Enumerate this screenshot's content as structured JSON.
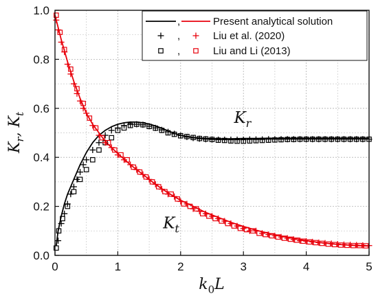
{
  "chart_data": {
    "type": "line",
    "xlabel": "k",
    "xlabel_sub": "0",
    "xlabel_tail": "L",
    "ylabel": "K",
    "ylabel_sub1": "r",
    "ylabel_sep": ", K",
    "ylabel_sub2": "t",
    "xlim": [
      0,
      5
    ],
    "ylim": [
      0,
      1.0
    ],
    "xticks": [
      0,
      1,
      2,
      3,
      4,
      5
    ],
    "yticks": [
      0.0,
      0.2,
      0.4,
      0.6,
      0.8,
      1.0
    ],
    "xtick_labels": [
      "0",
      "1",
      "2",
      "3",
      "4",
      "5"
    ],
    "ytick_labels": [
      "0.0",
      "0.2",
      "0.4",
      "0.6",
      "0.8",
      "1.0"
    ],
    "grid": true,
    "legend_position": "top-right",
    "legend": {
      "row1_sep": ",",
      "row1_label": "Present analytical solution",
      "row2_sep": ",",
      "row2_label": "Liu et al. (2020)",
      "row3_sep": ",",
      "row3_label": "Liu and Li (2013)"
    },
    "annotations": [
      {
        "main": "K",
        "sub": "r",
        "x": 2.85,
        "y": 0.54
      },
      {
        "main": "K",
        "sub": "t",
        "x": 1.72,
        "y": 0.11
      }
    ],
    "colors": {
      "Kr": "#000000",
      "Kt": "#e8000b"
    },
    "series": [
      {
        "key": "Kr_analytical",
        "style": "line",
        "color": "#000000",
        "x": [
          0.02,
          0.05,
          0.1,
          0.15,
          0.2,
          0.3,
          0.4,
          0.5,
          0.6,
          0.7,
          0.8,
          0.9,
          1.0,
          1.1,
          1.2,
          1.3,
          1.4,
          1.5,
          1.6,
          1.7,
          1.8,
          1.9,
          2.0,
          2.2,
          2.4,
          2.6,
          2.8,
          3.0,
          3.2,
          3.4,
          3.6,
          3.8,
          4.0,
          4.5,
          5.0
        ],
        "y": [
          0.04,
          0.1,
          0.16,
          0.21,
          0.25,
          0.31,
          0.37,
          0.42,
          0.46,
          0.49,
          0.51,
          0.525,
          0.535,
          0.541,
          0.544,
          0.544,
          0.541,
          0.536,
          0.528,
          0.519,
          0.508,
          0.498,
          0.49,
          0.481,
          0.477,
          0.476,
          0.476,
          0.477,
          0.477,
          0.478,
          0.478,
          0.478,
          0.478,
          0.478,
          0.478
        ]
      },
      {
        "key": "Kt_analytical",
        "style": "line",
        "color": "#e8000b",
        "x": [
          0.0,
          0.05,
          0.1,
          0.2,
          0.3,
          0.4,
          0.5,
          0.6,
          0.7,
          0.8,
          0.9,
          1.0,
          1.2,
          1.4,
          1.6,
          1.8,
          2.0,
          2.2,
          2.4,
          2.6,
          2.8,
          3.0,
          3.2,
          3.4,
          3.6,
          3.8,
          4.0,
          4.2,
          4.4,
          4.6,
          4.8,
          5.0
        ],
        "y": [
          0.98,
          0.93,
          0.88,
          0.79,
          0.71,
          0.64,
          0.58,
          0.535,
          0.5,
          0.465,
          0.44,
          0.415,
          0.37,
          0.33,
          0.29,
          0.255,
          0.225,
          0.2,
          0.175,
          0.155,
          0.135,
          0.118,
          0.103,
          0.09,
          0.079,
          0.069,
          0.06,
          0.053,
          0.047,
          0.043,
          0.04,
          0.038
        ]
      },
      {
        "key": "Kr_liu2020",
        "style": "plus",
        "color": "#000000",
        "x": [
          0.05,
          0.1,
          0.15,
          0.2,
          0.25,
          0.3,
          0.35,
          0.4,
          0.45,
          0.5,
          0.6,
          0.7,
          0.8,
          0.9,
          1.0,
          1.1,
          1.2,
          1.3,
          1.4,
          1.5,
          1.6,
          1.7,
          1.8,
          1.9,
          2.0,
          2.1,
          2.2,
          2.3,
          2.4,
          2.5,
          2.6,
          2.7,
          2.8,
          2.9,
          3.0,
          3.1,
          3.2,
          3.3,
          3.4,
          3.5,
          3.6,
          3.7,
          3.8,
          3.9,
          4.0,
          4.1,
          4.2,
          4.3,
          4.4,
          4.5,
          4.6,
          4.7,
          4.8,
          4.9,
          5.0
        ],
        "y": [
          0.06,
          0.13,
          0.17,
          0.21,
          0.25,
          0.28,
          0.31,
          0.34,
          0.37,
          0.39,
          0.43,
          0.46,
          0.49,
          0.51,
          0.52,
          0.53,
          0.534,
          0.535,
          0.533,
          0.527,
          0.52,
          0.512,
          0.504,
          0.496,
          0.489,
          0.483,
          0.479,
          0.476,
          0.474,
          0.473,
          0.472,
          0.472,
          0.472,
          0.472,
          0.472,
          0.473,
          0.473,
          0.473,
          0.474,
          0.474,
          0.474,
          0.474,
          0.474,
          0.474,
          0.474,
          0.474,
          0.474,
          0.474,
          0.474,
          0.474,
          0.474,
          0.474,
          0.474,
          0.474,
          0.474
        ]
      },
      {
        "key": "Kr_liuli2013",
        "style": "square",
        "color": "#000000",
        "x": [
          0.02,
          0.06,
          0.12,
          0.2,
          0.3,
          0.4,
          0.5,
          0.6,
          0.7,
          0.8,
          0.9,
          1.0,
          1.1,
          1.2,
          1.3,
          1.4,
          1.5,
          1.6,
          1.7,
          1.8,
          1.9,
          2.0,
          2.1,
          2.2,
          2.3,
          2.4,
          2.5,
          2.6,
          2.7,
          2.8,
          2.9,
          3.0,
          3.1,
          3.2,
          3.3,
          3.4,
          3.5,
          3.6,
          3.7,
          3.8,
          3.9,
          4.0,
          4.1,
          4.2,
          4.3,
          4.4,
          4.5,
          4.6,
          4.7,
          4.8,
          4.9,
          5.0
        ],
        "y": [
          0.03,
          0.1,
          0.15,
          0.2,
          0.26,
          0.31,
          0.35,
          0.39,
          0.43,
          0.46,
          0.48,
          0.51,
          0.52,
          0.53,
          0.535,
          0.533,
          0.526,
          0.519,
          0.51,
          0.5,
          0.494,
          0.488,
          0.485,
          0.481,
          0.477,
          0.475,
          0.473,
          0.47,
          0.469,
          0.467,
          0.466,
          0.466,
          0.467,
          0.468,
          0.469,
          0.47,
          0.471,
          0.472,
          0.473,
          0.473,
          0.474,
          0.474,
          0.474,
          0.474,
          0.474,
          0.474,
          0.474,
          0.474,
          0.474,
          0.474,
          0.474,
          0.474
        ]
      },
      {
        "key": "Kt_liu2020",
        "style": "plus",
        "color": "#e8000b",
        "x": [
          0.02,
          0.05,
          0.1,
          0.15,
          0.2,
          0.25,
          0.3,
          0.35,
          0.4,
          0.45,
          0.5,
          0.6,
          0.7,
          0.8,
          0.9,
          1.0,
          1.1,
          1.2,
          1.3,
          1.4,
          1.5,
          1.6,
          1.7,
          1.8,
          1.9,
          2.0,
          2.1,
          2.2,
          2.3,
          2.4,
          2.5,
          2.6,
          2.7,
          2.8,
          2.9,
          3.0,
          3.1,
          3.2,
          3.3,
          3.4,
          3.5,
          3.6,
          3.7,
          3.8,
          3.9,
          4.0,
          4.1,
          4.2,
          4.3,
          4.4,
          4.5,
          4.6,
          4.7,
          4.8,
          4.9,
          5.0
        ],
        "y": [
          0.96,
          0.92,
          0.87,
          0.83,
          0.78,
          0.74,
          0.7,
          0.66,
          0.63,
          0.6,
          0.58,
          0.53,
          0.49,
          0.46,
          0.44,
          0.41,
          0.39,
          0.37,
          0.35,
          0.33,
          0.31,
          0.29,
          0.27,
          0.25,
          0.24,
          0.22,
          0.21,
          0.19,
          0.18,
          0.17,
          0.16,
          0.15,
          0.14,
          0.13,
          0.12,
          0.11,
          0.1,
          0.1,
          0.09,
          0.085,
          0.08,
          0.075,
          0.07,
          0.065,
          0.06,
          0.058,
          0.055,
          0.052,
          0.05,
          0.048,
          0.046,
          0.044,
          0.043,
          0.042,
          0.041,
          0.04
        ]
      },
      {
        "key": "Kt_liuli2013",
        "style": "square",
        "color": "#e8000b",
        "x": [
          0.02,
          0.08,
          0.15,
          0.25,
          0.35,
          0.45,
          0.55,
          0.65,
          0.75,
          0.85,
          0.95,
          1.05,
          1.15,
          1.25,
          1.35,
          1.45,
          1.55,
          1.65,
          1.75,
          1.85,
          1.95,
          2.05,
          2.15,
          2.25,
          2.35,
          2.45,
          2.55,
          2.65,
          2.75,
          2.85,
          2.95,
          3.05,
          3.15,
          3.25,
          3.35,
          3.45,
          3.55,
          3.65,
          3.75,
          3.85,
          3.95,
          4.05,
          4.15,
          4.25,
          4.35,
          4.45,
          4.55,
          4.65,
          4.75,
          4.85,
          4.95
        ],
        "y": [
          0.98,
          0.91,
          0.84,
          0.76,
          0.68,
          0.62,
          0.56,
          0.52,
          0.48,
          0.46,
          0.43,
          0.41,
          0.39,
          0.36,
          0.34,
          0.32,
          0.3,
          0.28,
          0.26,
          0.25,
          0.23,
          0.21,
          0.2,
          0.19,
          0.17,
          0.16,
          0.15,
          0.14,
          0.13,
          0.12,
          0.11,
          0.105,
          0.1,
          0.09,
          0.085,
          0.08,
          0.075,
          0.07,
          0.066,
          0.062,
          0.058,
          0.055,
          0.052,
          0.049,
          0.046,
          0.044,
          0.042,
          0.041,
          0.04,
          0.04,
          0.039
        ]
      }
    ]
  }
}
